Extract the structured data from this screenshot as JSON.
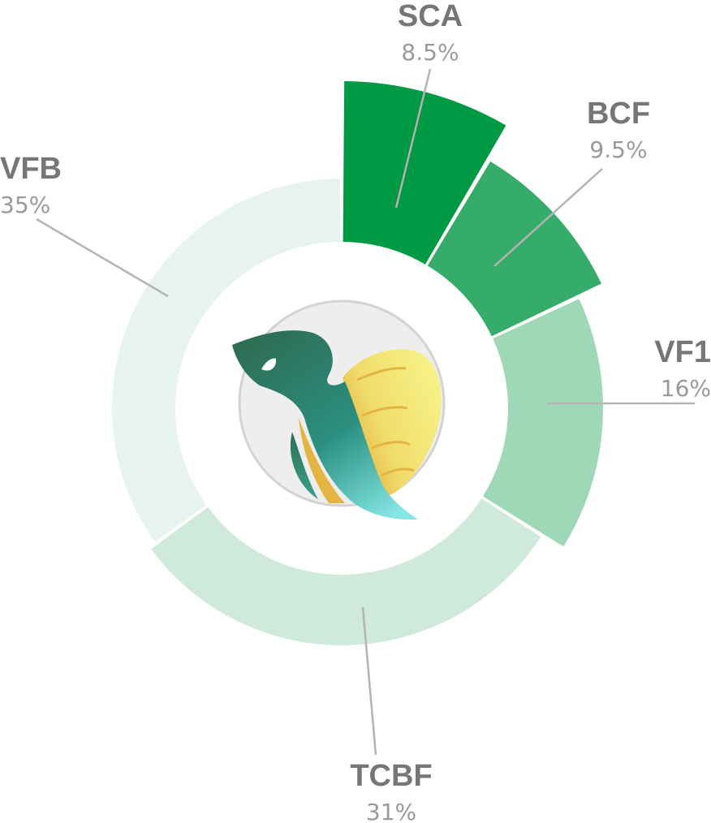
{
  "chart_data": {
    "type": "pie",
    "subtype": "variable-radius donut",
    "start_angle_deg": 0,
    "direction": "clockwise",
    "slices": [
      {
        "label": "SCA",
        "value_label": "8.5%",
        "value": 8.5,
        "color": "#009a44"
      },
      {
        "label": "BCF",
        "value_label": "9.5%",
        "value": 9.5,
        "color": "#35ac6a"
      },
      {
        "label": "VF1",
        "value_label": "16%",
        "value": 16,
        "color": "#9fd8b6"
      },
      {
        "label": "TCBF",
        "value_label": "31%",
        "value": 31,
        "color": "#cfeadb"
      },
      {
        "label": "VFB",
        "value_label": "35%",
        "value": 35,
        "color": "#e6f4ed"
      }
    ],
    "center_logo": {
      "icon": "bird-logo-icon",
      "background": "#eeeeee",
      "border": "#d3d3d3",
      "colors": [
        "#2e7d5a",
        "#7be0de",
        "#f5ee84",
        "#e0a838"
      ]
    }
  }
}
